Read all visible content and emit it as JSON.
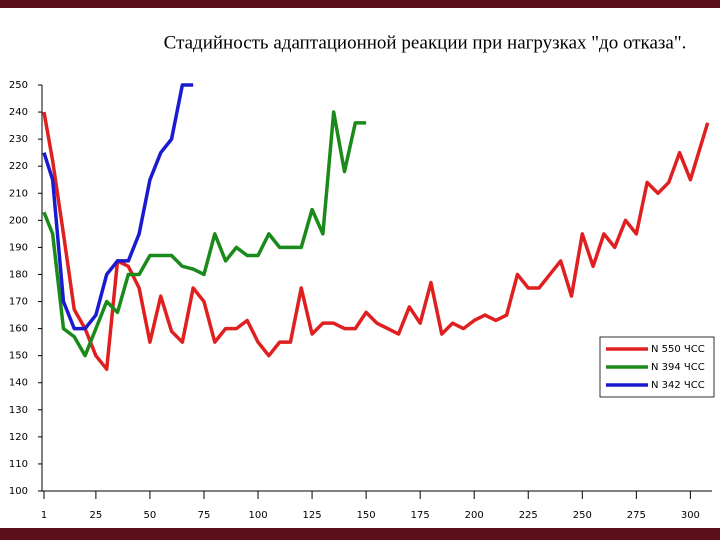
{
  "chart_data": {
    "type": "line",
    "title": "Стадийность адаптационной реакции при нагрузках \"до отказа\".",
    "xlim": [
      1,
      310
    ],
    "xticks": [
      1,
      25,
      50,
      75,
      100,
      125,
      150,
      175,
      200,
      225,
      250,
      275,
      300
    ],
    "ylim": [
      100,
      250
    ],
    "yticks": [
      100,
      110,
      120,
      130,
      140,
      150,
      160,
      170,
      180,
      190,
      200,
      210,
      220,
      230,
      240,
      250
    ],
    "legend": "right",
    "series": [
      {
        "name": "N 550 ЧСС",
        "color": "#e02020",
        "x": [
          1,
          5,
          10,
          15,
          20,
          25,
          30,
          35,
          40,
          45,
          50,
          55,
          60,
          65,
          70,
          75,
          80,
          85,
          90,
          95,
          100,
          105,
          110,
          115,
          120,
          125,
          130,
          135,
          140,
          145,
          150,
          155,
          160,
          165,
          170,
          175,
          180,
          185,
          190,
          195,
          200,
          205,
          210,
          215,
          220,
          225,
          230,
          235,
          240,
          245,
          250,
          255,
          260,
          265,
          270,
          275,
          280,
          285,
          290,
          295,
          300,
          308
        ],
        "values": [
          240,
          222,
          195,
          167,
          160,
          150,
          145,
          185,
          183,
          175,
          155,
          172,
          159,
          155,
          175,
          170,
          155,
          160,
          160,
          163,
          155,
          150,
          155,
          155,
          175,
          158,
          162,
          162,
          160,
          160,
          166,
          162,
          160,
          158,
          168,
          162,
          177,
          158,
          162,
          160,
          163,
          165,
          163,
          165,
          180,
          175,
          175,
          180,
          185,
          172,
          195,
          183,
          195,
          190,
          200,
          195,
          214,
          210,
          214,
          225,
          215,
          236
        ]
      },
      {
        "name": "N 394 ЧСС",
        "color": "#1a8a1a",
        "x": [
          1,
          5,
          10,
          15,
          20,
          25,
          30,
          35,
          40,
          45,
          50,
          55,
          60,
          65,
          70,
          75,
          80,
          85,
          90,
          95,
          100,
          105,
          110,
          115,
          120,
          125,
          130,
          135,
          140,
          145,
          150
        ],
        "values": [
          203,
          195,
          160,
          157,
          150,
          160,
          170,
          166,
          180,
          180,
          187,
          187,
          187,
          183,
          182,
          180,
          195,
          185,
          190,
          187,
          187,
          195,
          190,
          190,
          190,
          204,
          195,
          240,
          218,
          236,
          236
        ]
      },
      {
        "name": "N 342 ЧСС",
        "color": "#1a1ad0",
        "x": [
          1,
          5,
          10,
          15,
          20,
          25,
          30,
          35,
          40,
          45,
          50,
          55,
          60,
          65,
          70
        ],
        "values": [
          225,
          215,
          170,
          160,
          160,
          165,
          180,
          185,
          185,
          195,
          215,
          225,
          230,
          250,
          250
        ]
      }
    ]
  }
}
